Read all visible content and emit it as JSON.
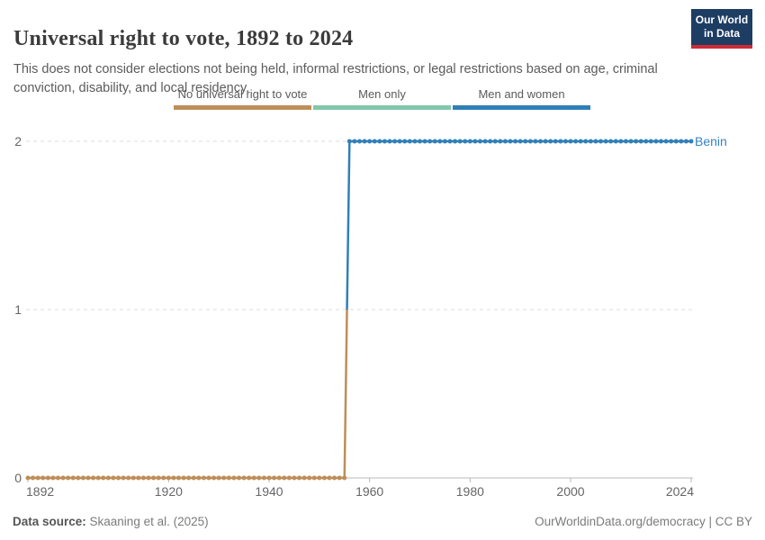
{
  "header": {
    "title": "Universal right to vote, 1892 to 2024",
    "subtitle": "This does not consider elections not being held, informal restrictions, or legal restrictions based on age, criminal conviction, disability, and local residency."
  },
  "logo": {
    "line1": "Our World",
    "line2": "in Data",
    "bg": "#1d3d63",
    "accent": "#cf2a36"
  },
  "legend": {
    "items": [
      {
        "label": "No universal right to vote",
        "color": "#be8e58"
      },
      {
        "label": "Men only",
        "color": "#82c7ac"
      },
      {
        "label": "Men and women",
        "color": "#3080b8"
      }
    ]
  },
  "chart_data": {
    "type": "line",
    "title": "Universal right to vote, 1892 to 2024",
    "entity": "Benin",
    "entity_color": "#3484c4",
    "x_range": [
      1892,
      2024
    ],
    "x_ticks": [
      1892,
      1920,
      1940,
      1960,
      1980,
      2000,
      2024
    ],
    "y_range": [
      0,
      2
    ],
    "y_ticks": [
      0,
      1,
      2
    ],
    "grid": "horizontal-dashed",
    "value_labels": {
      "0": "No universal right to vote",
      "1": "Men only",
      "2": "Men and women"
    },
    "point_interval_years": 1,
    "series": [
      {
        "name": "Benin",
        "steps": [
          {
            "from_year": 1892,
            "to_year": 1955,
            "value": 0,
            "color": "#be8e58"
          },
          {
            "from_year": 1956,
            "to_year": 2024,
            "value": 2,
            "color": "#3080b8"
          }
        ]
      }
    ]
  },
  "footer": {
    "source_label": "Data source:",
    "source_value": " Skaaning et al. (2025)",
    "credit": "OurWorldinData.org/democracy | CC BY"
  }
}
